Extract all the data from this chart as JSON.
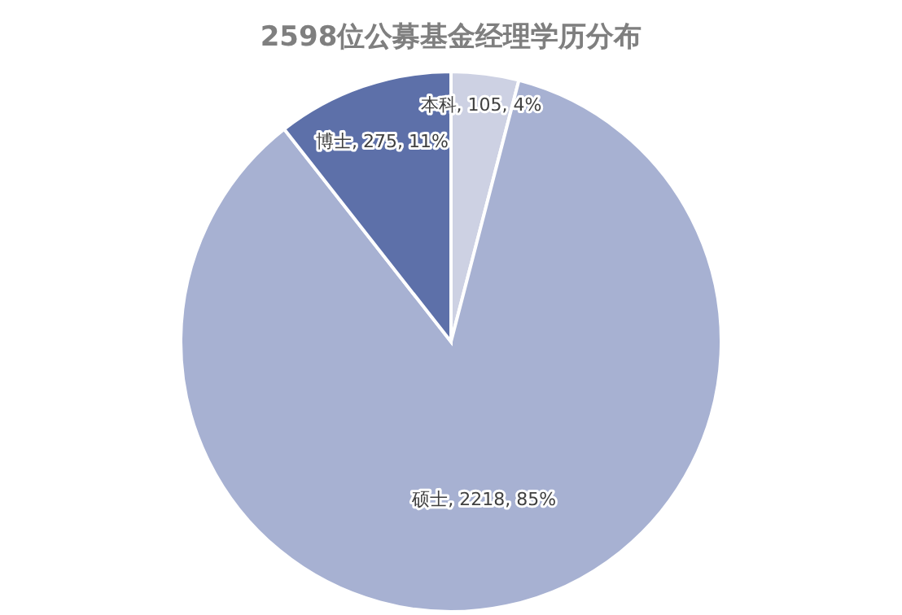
{
  "chart_data": {
    "type": "pie",
    "title": "2598位公募基金经理学历分布",
    "categories": [
      "本科",
      "硕士",
      "博士"
    ],
    "values": [
      105,
      2218,
      275
    ],
    "value_labels": [
      "105, 4%",
      "2218, 85%",
      "275, 11%"
    ],
    "colors": [
      "#cdd1e3",
      "#a7b1d2",
      "#5d70a9"
    ]
  }
}
